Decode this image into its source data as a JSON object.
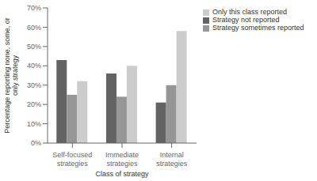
{
  "chart_data": {
    "type": "bar",
    "categories": [
      "Self-focused\nstrategies",
      "Immediate\nstrategies",
      "Internal\nstrategies"
    ],
    "series": [
      {
        "name": "Strategy not reported",
        "color": "#636363",
        "values": [
          43,
          36,
          21
        ]
      },
      {
        "name": "Strategy sometimes reported",
        "color": "#969696",
        "values": [
          25,
          24,
          30
        ]
      },
      {
        "name": "Only this class reported",
        "color": "#cccccc",
        "values": [
          32,
          40,
          58
        ]
      }
    ],
    "xlabel": "Class of strategy",
    "ylabel": "Percentage reporting none, some, or\nonly strategy",
    "ylim": [
      0,
      70
    ],
    "yticks": [
      {
        "value": 0,
        "label": "0%"
      },
      {
        "value": 10,
        "label": "10%"
      },
      {
        "value": 20,
        "label": "20%"
      },
      {
        "value": 30,
        "label": "30%"
      },
      {
        "value": 40,
        "label": "40%"
      },
      {
        "value": 50,
        "label": "50%"
      },
      {
        "value": 60,
        "label": "60%"
      },
      {
        "value": 70,
        "label": "70%"
      }
    ],
    "grid": false,
    "legend": "right"
  }
}
